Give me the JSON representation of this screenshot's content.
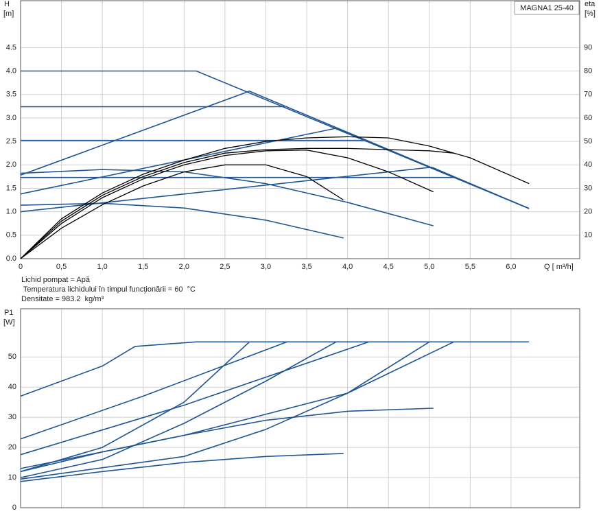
{
  "chart_data": [
    {
      "type": "line",
      "legend_box": "MAGNA1 25-40",
      "ylabel": "H",
      "yunit": "[m]",
      "y2label": "eta",
      "y2unit": "[%]",
      "xlabel": "Q [ m³/h]",
      "notes": [
        "Lichid pompat = Apă",
        " Temperatura lichidului în timpul funcţionării = 60  °C",
        "Densitate = 983.2  kg/m³"
      ],
      "xlim": [
        0,
        6.84
      ],
      "ylim": [
        0,
        5.5
      ],
      "y2lim": [
        0,
        110
      ],
      "grid": true,
      "xticks": [
        0,
        {
          "value": 0.5,
          "label": "0,5"
        },
        {
          "value": 1,
          "label": "1,0"
        },
        {
          "value": 1.5,
          "label": "1,5"
        },
        {
          "value": 2,
          "label": "2,0"
        },
        {
          "value": 2.5,
          "label": "2,5"
        },
        {
          "value": 3,
          "label": "3,0"
        },
        {
          "value": 3.5,
          "label": "3,5"
        },
        {
          "value": 4,
          "label": "4,0"
        },
        {
          "value": 4.5,
          "label": "4,5"
        },
        {
          "value": 5,
          "label": "5,0"
        },
        {
          "value": 5.5,
          "label": "5,5"
        },
        {
          "value": 6,
          "label": "6,0"
        }
      ],
      "yticks": [
        {
          "value": 0,
          "label": "0.0"
        },
        0.5,
        {
          "value": 1,
          "label": "1.0"
        },
        1.5,
        {
          "value": 2,
          "label": "2.0"
        },
        2.5,
        {
          "value": 3,
          "label": "3.0"
        },
        3.5,
        {
          "value": 4,
          "label": "4.0"
        },
        4.5
      ],
      "y2ticks": [
        10,
        20,
        30,
        40,
        50,
        60,
        70,
        80,
        90
      ],
      "series": [
        {
          "color": "#1f5592",
          "x": [
            0,
            2.15,
            6.22
          ],
          "values": [
            4.0,
            4.0,
            1.07
          ]
        },
        {
          "color": "#1f5592",
          "x": [
            0,
            3.23
          ],
          "values": [
            3.24,
            3.24
          ]
        },
        {
          "color": "#1f5592",
          "x": [
            0,
            4.2
          ],
          "values": [
            2.52,
            2.52
          ]
        },
        {
          "color": "#1f5592",
          "x": [
            0,
            5.3
          ],
          "values": [
            1.73,
            1.73
          ]
        },
        {
          "color": "#1f5592",
          "x": [
            0,
            2.8,
            6.22
          ],
          "values": [
            1.78,
            3.57,
            1.07
          ]
        },
        {
          "color": "#1f5592",
          "x": [
            0,
            3.86,
            6.22
          ],
          "values": [
            1.38,
            2.78,
            1.07
          ]
        },
        {
          "color": "#1f5592",
          "x": [
            0,
            5.03,
            6.22
          ],
          "values": [
            1.0,
            1.95,
            1.07
          ]
        },
        {
          "color": "#1f5592",
          "x": [
            0,
            1,
            2,
            3,
            4,
            5.05
          ],
          "values": [
            1.82,
            1.9,
            1.85,
            1.6,
            1.2,
            0.7
          ]
        },
        {
          "color": "#1f5592",
          "x": [
            0,
            1,
            2,
            3,
            3.95
          ],
          "values": [
            1.14,
            1.18,
            1.08,
            0.82,
            0.44
          ]
        },
        {
          "color": "#000000",
          "axis": "y2",
          "x": [
            0,
            0.5,
            1,
            1.5,
            2,
            2.5,
            3,
            3.5,
            4,
            4.5,
            5,
            5.5,
            6.22
          ],
          "values": [
            0,
            17,
            28,
            36,
            42,
            47,
            50,
            51.5,
            52,
            51.5,
            48,
            43,
            32
          ]
        },
        {
          "color": "#000000",
          "axis": "y2",
          "x": [
            0,
            0.5,
            1,
            1.5,
            2,
            2.5,
            3,
            3.5,
            4,
            4.5,
            5,
            5.3
          ],
          "values": [
            0,
            16,
            27,
            35,
            41,
            45,
            46.5,
            47,
            47,
            46.5,
            46,
            45
          ]
        },
        {
          "color": "#000000",
          "axis": "y2",
          "x": [
            0,
            0.5,
            1,
            1.5,
            2,
            2.5,
            3,
            3.5,
            4,
            4.5,
            5.05
          ],
          "values": [
            0,
            15,
            26,
            34,
            40,
            44,
            46,
            46.3,
            43,
            37,
            28.5
          ]
        },
        {
          "color": "#000000",
          "axis": "y2",
          "x": [
            0,
            0.5,
            1,
            1.5,
            2,
            2.5,
            3,
            3.5,
            3.95
          ],
          "values": [
            0,
            13,
            23,
            31,
            37,
            40,
            40,
            35,
            25
          ]
        }
      ]
    },
    {
      "type": "line",
      "ylabel": "P1",
      "yunit": "[W]",
      "xlim": [
        0,
        6.84
      ],
      "ylim": [
        0,
        66
      ],
      "grid": true,
      "xticks": [
        0,
        0.5,
        1,
        1.5,
        2,
        2.5,
        3,
        3.5,
        4,
        4.5,
        5,
        5.5,
        6
      ],
      "yticks": [
        0,
        10,
        20,
        30,
        40,
        50
      ],
      "series": [
        {
          "color": "#1f5592",
          "x": [
            0,
            1,
            1.4,
            2.15,
            6.22
          ],
          "values": [
            37,
            47,
            53.5,
            55,
            55
          ]
        },
        {
          "color": "#1f5592",
          "x": [
            0,
            1,
            2,
            2.8
          ],
          "values": [
            12,
            20,
            35,
            55
          ]
        },
        {
          "color": "#1f5592",
          "x": [
            0,
            1.5,
            3.26
          ],
          "values": [
            22.8,
            37,
            55
          ]
        },
        {
          "color": "#1f5592",
          "x": [
            0,
            1,
            2,
            3,
            3.86
          ],
          "values": [
            10,
            16,
            28,
            42,
            55
          ]
        },
        {
          "color": "#1f5592",
          "x": [
            0,
            2,
            4.26
          ],
          "values": [
            17.6,
            34,
            55
          ]
        },
        {
          "color": "#1f5592",
          "x": [
            0,
            2,
            3,
            4,
            5
          ],
          "values": [
            9.5,
            17,
            26,
            38,
            55
          ]
        },
        {
          "color": "#1f5592",
          "x": [
            0,
            2,
            4,
            5.3
          ],
          "values": [
            13,
            24,
            38,
            55
          ]
        },
        {
          "color": "#1f5592",
          "x": [
            0,
            1,
            2,
            3,
            4,
            5.05
          ],
          "values": [
            12,
            18.5,
            24,
            29,
            32,
            33
          ]
        },
        {
          "color": "#1f5592",
          "x": [
            0,
            1,
            2,
            3,
            3.95
          ],
          "values": [
            8.7,
            12,
            15,
            17,
            18
          ]
        }
      ]
    }
  ]
}
